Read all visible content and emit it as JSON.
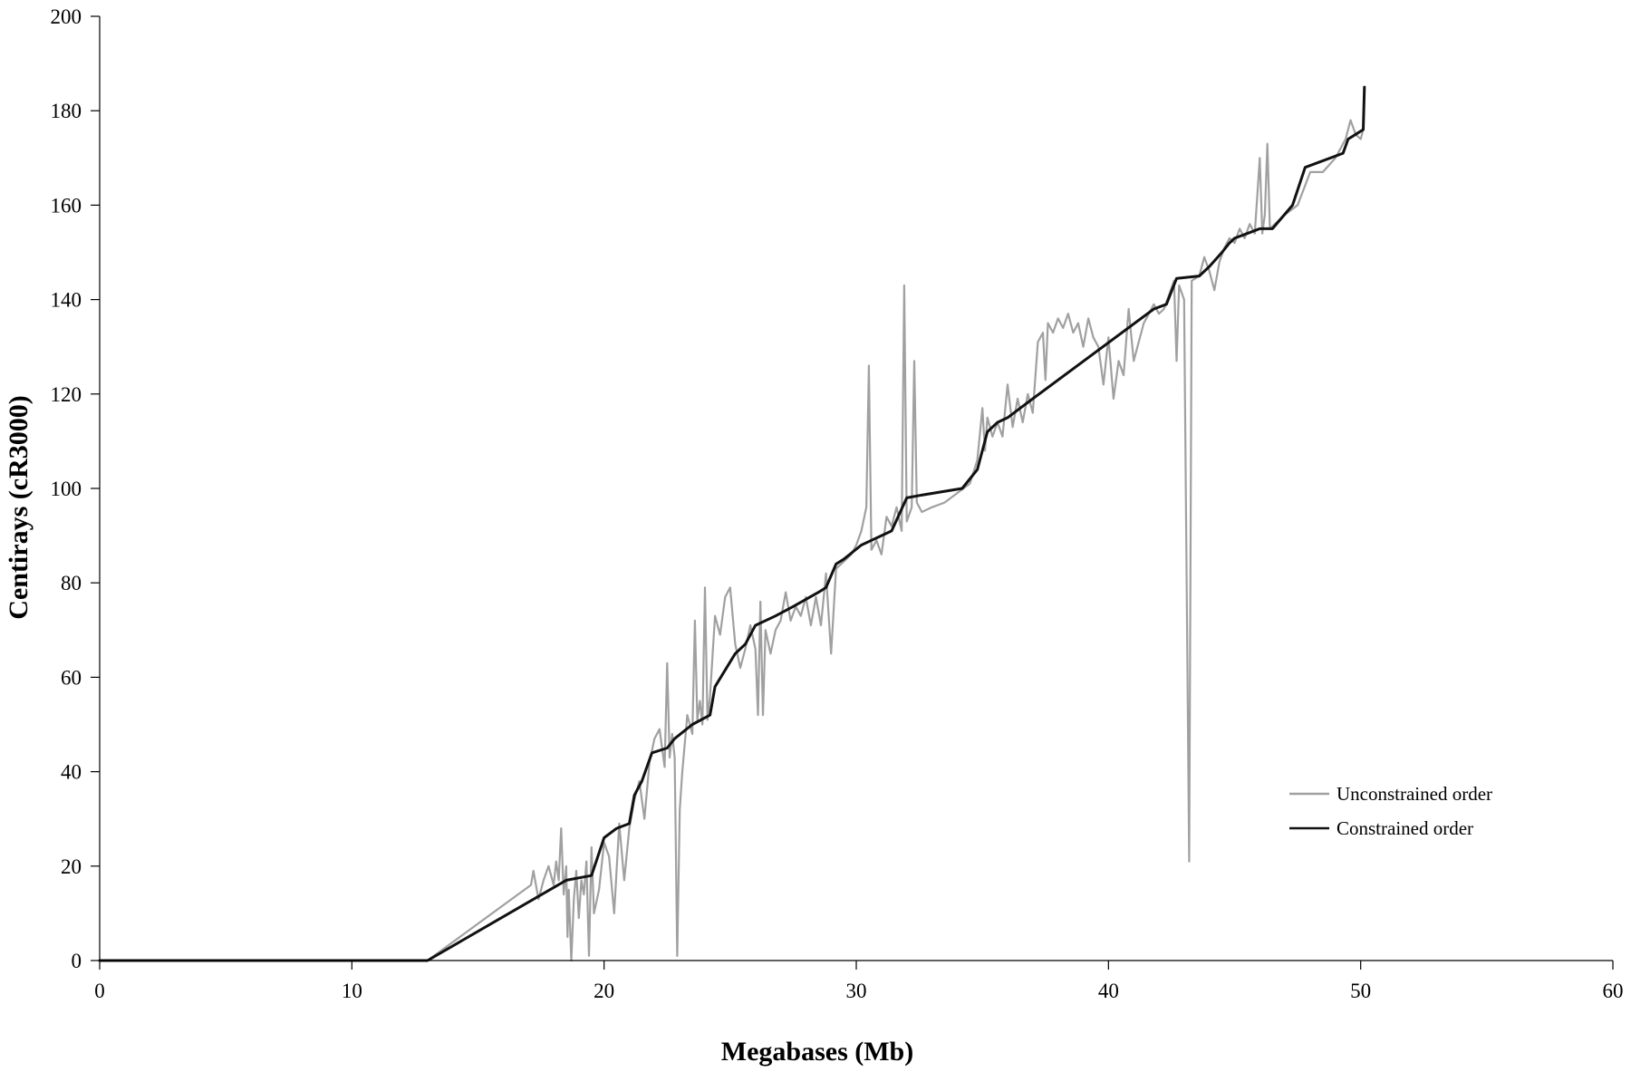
{
  "chart_data": {
    "type": "line",
    "title": "",
    "xlabel": "Megabases (Mb)",
    "ylabel": "Centirays (cR3000)",
    "xlim": [
      0,
      60
    ],
    "ylim": [
      0,
      200
    ],
    "xticks": [
      0,
      10,
      20,
      30,
      40,
      50,
      60
    ],
    "yticks": [
      0,
      20,
      40,
      60,
      80,
      100,
      120,
      140,
      160,
      180,
      200
    ],
    "grid": false,
    "legend": "inside-bottom-right",
    "series": [
      {
        "name": "Unconstrained order",
        "color": "#a0a0a0",
        "points": [
          [
            0,
            0
          ],
          [
            13.0,
            0
          ],
          [
            17.1,
            16
          ],
          [
            17.2,
            19
          ],
          [
            17.4,
            13
          ],
          [
            17.6,
            17
          ],
          [
            17.8,
            20
          ],
          [
            18.0,
            16
          ],
          [
            18.1,
            21
          ],
          [
            18.2,
            17
          ],
          [
            18.3,
            28
          ],
          [
            18.4,
            14
          ],
          [
            18.5,
            20
          ],
          [
            18.55,
            5
          ],
          [
            18.6,
            15
          ],
          [
            18.7,
            0
          ],
          [
            18.8,
            13
          ],
          [
            18.9,
            19
          ],
          [
            19.0,
            9
          ],
          [
            19.1,
            17
          ],
          [
            19.2,
            14
          ],
          [
            19.3,
            21
          ],
          [
            19.4,
            1
          ],
          [
            19.5,
            24
          ],
          [
            19.6,
            10
          ],
          [
            19.8,
            15
          ],
          [
            20.0,
            25
          ],
          [
            20.2,
            22
          ],
          [
            20.4,
            10
          ],
          [
            20.6,
            29
          ],
          [
            20.8,
            17
          ],
          [
            21.0,
            28
          ],
          [
            21.2,
            34
          ],
          [
            21.4,
            38
          ],
          [
            21.6,
            30
          ],
          [
            21.8,
            42
          ],
          [
            22.0,
            47
          ],
          [
            22.2,
            49
          ],
          [
            22.4,
            41
          ],
          [
            22.5,
            63
          ],
          [
            22.6,
            43
          ],
          [
            22.7,
            48
          ],
          [
            22.8,
            43
          ],
          [
            22.9,
            1
          ],
          [
            23.0,
            32
          ],
          [
            23.1,
            40
          ],
          [
            23.3,
            52
          ],
          [
            23.5,
            48
          ],
          [
            23.6,
            72
          ],
          [
            23.7,
            51
          ],
          [
            23.8,
            55
          ],
          [
            23.9,
            50
          ],
          [
            24.0,
            79
          ],
          [
            24.1,
            51
          ],
          [
            24.2,
            56
          ],
          [
            24.4,
            73
          ],
          [
            24.6,
            69
          ],
          [
            24.8,
            77
          ],
          [
            25.0,
            79
          ],
          [
            25.2,
            67
          ],
          [
            25.4,
            62
          ],
          [
            25.6,
            66
          ],
          [
            25.8,
            71
          ],
          [
            26.0,
            66
          ],
          [
            26.1,
            52
          ],
          [
            26.2,
            76
          ],
          [
            26.3,
            52
          ],
          [
            26.4,
            70
          ],
          [
            26.6,
            65
          ],
          [
            26.8,
            70
          ],
          [
            27.0,
            72
          ],
          [
            27.2,
            78
          ],
          [
            27.4,
            72
          ],
          [
            27.6,
            75
          ],
          [
            27.8,
            73
          ],
          [
            28.0,
            77
          ],
          [
            28.2,
            71
          ],
          [
            28.4,
            77
          ],
          [
            28.6,
            71
          ],
          [
            28.8,
            82
          ],
          [
            29.0,
            65
          ],
          [
            29.2,
            83
          ],
          [
            29.4,
            84
          ],
          [
            29.6,
            85
          ],
          [
            29.8,
            86
          ],
          [
            30.0,
            88
          ],
          [
            30.2,
            91
          ],
          [
            30.4,
            96
          ],
          [
            30.5,
            126
          ],
          [
            30.6,
            87
          ],
          [
            30.8,
            89
          ],
          [
            31.0,
            86
          ],
          [
            31.2,
            94
          ],
          [
            31.4,
            92
          ],
          [
            31.6,
            96
          ],
          [
            31.8,
            91
          ],
          [
            31.9,
            143
          ],
          [
            32.0,
            93
          ],
          [
            32.2,
            96
          ],
          [
            32.3,
            127
          ],
          [
            32.4,
            97
          ],
          [
            32.6,
            95
          ],
          [
            33.0,
            96
          ],
          [
            33.5,
            97
          ],
          [
            34.0,
            99
          ],
          [
            34.5,
            101
          ],
          [
            34.8,
            106
          ],
          [
            35.0,
            117
          ],
          [
            35.1,
            108
          ],
          [
            35.2,
            115
          ],
          [
            35.4,
            111
          ],
          [
            35.6,
            114
          ],
          [
            35.8,
            111
          ],
          [
            36.0,
            122
          ],
          [
            36.2,
            113
          ],
          [
            36.4,
            119
          ],
          [
            36.6,
            114
          ],
          [
            36.8,
            120
          ],
          [
            37.0,
            116
          ],
          [
            37.2,
            131
          ],
          [
            37.4,
            133
          ],
          [
            37.5,
            123
          ],
          [
            37.6,
            135
          ],
          [
            37.8,
            133
          ],
          [
            38.0,
            136
          ],
          [
            38.2,
            134
          ],
          [
            38.4,
            137
          ],
          [
            38.6,
            133
          ],
          [
            38.8,
            135
          ],
          [
            39.0,
            130
          ],
          [
            39.2,
            136
          ],
          [
            39.4,
            132
          ],
          [
            39.6,
            130
          ],
          [
            39.8,
            122
          ],
          [
            40.0,
            132
          ],
          [
            40.2,
            119
          ],
          [
            40.4,
            127
          ],
          [
            40.6,
            124
          ],
          [
            40.8,
            138
          ],
          [
            41.0,
            127
          ],
          [
            41.2,
            131
          ],
          [
            41.4,
            135
          ],
          [
            41.6,
            137
          ],
          [
            41.8,
            139
          ],
          [
            42.0,
            137
          ],
          [
            42.2,
            138
          ],
          [
            42.4,
            141
          ],
          [
            42.6,
            144
          ],
          [
            42.7,
            127
          ],
          [
            42.8,
            143
          ],
          [
            43.0,
            140
          ],
          [
            43.2,
            21
          ],
          [
            43.3,
            144
          ],
          [
            43.6,
            145
          ],
          [
            43.8,
            149
          ],
          [
            44.0,
            146
          ],
          [
            44.2,
            142
          ],
          [
            44.4,
            148
          ],
          [
            44.6,
            151
          ],
          [
            44.8,
            153
          ],
          [
            45.0,
            152
          ],
          [
            45.2,
            155
          ],
          [
            45.4,
            153
          ],
          [
            45.6,
            156
          ],
          [
            45.8,
            154
          ],
          [
            46.0,
            170
          ],
          [
            46.1,
            154
          ],
          [
            46.2,
            158
          ],
          [
            46.3,
            173
          ],
          [
            46.4,
            155
          ],
          [
            46.6,
            156
          ],
          [
            47.0,
            158
          ],
          [
            47.5,
            160
          ],
          [
            48.0,
            167
          ],
          [
            48.5,
            167
          ],
          [
            49.0,
            170
          ],
          [
            49.4,
            174
          ],
          [
            49.6,
            178
          ],
          [
            49.8,
            175
          ],
          [
            50.0,
            174
          ],
          [
            50.1,
            176
          ],
          [
            50.15,
            185
          ]
        ]
      },
      {
        "name": "Constrained order",
        "color": "#111111",
        "points": [
          [
            0,
            0
          ],
          [
            13.0,
            0
          ],
          [
            18.5,
            17
          ],
          [
            19.5,
            18
          ],
          [
            20.0,
            26
          ],
          [
            20.5,
            28
          ],
          [
            21.0,
            29
          ],
          [
            21.2,
            35
          ],
          [
            21.5,
            38
          ],
          [
            21.9,
            44
          ],
          [
            22.5,
            45
          ],
          [
            22.8,
            47
          ],
          [
            23.5,
            50
          ],
          [
            24.2,
            52
          ],
          [
            24.4,
            58
          ],
          [
            25.2,
            65
          ],
          [
            25.6,
            67
          ],
          [
            26.0,
            71
          ],
          [
            26.8,
            73
          ],
          [
            27.5,
            75
          ],
          [
            28.5,
            78
          ],
          [
            28.8,
            79
          ],
          [
            29.2,
            84
          ],
          [
            29.5,
            85
          ],
          [
            30.2,
            88
          ],
          [
            30.6,
            89
          ],
          [
            31.0,
            90
          ],
          [
            31.4,
            91
          ],
          [
            32.0,
            98
          ],
          [
            32.5,
            98.5
          ],
          [
            34.2,
            100
          ],
          [
            34.8,
            104
          ],
          [
            35.2,
            112
          ],
          [
            35.6,
            114
          ],
          [
            36.0,
            115
          ],
          [
            36.5,
            117
          ],
          [
            37.0,
            119
          ],
          [
            41.8,
            138
          ],
          [
            42.3,
            139
          ],
          [
            42.7,
            144.5
          ],
          [
            43.6,
            145
          ],
          [
            44.0,
            147
          ],
          [
            44.5,
            150
          ],
          [
            44.8,
            152
          ],
          [
            45.0,
            153
          ],
          [
            45.5,
            154
          ],
          [
            46.0,
            155
          ],
          [
            46.5,
            155
          ],
          [
            47.3,
            160
          ],
          [
            47.8,
            168
          ],
          [
            49.3,
            171
          ],
          [
            49.5,
            174
          ],
          [
            49.8,
            175
          ],
          [
            50.1,
            176
          ],
          [
            50.15,
            185
          ]
        ]
      }
    ]
  }
}
